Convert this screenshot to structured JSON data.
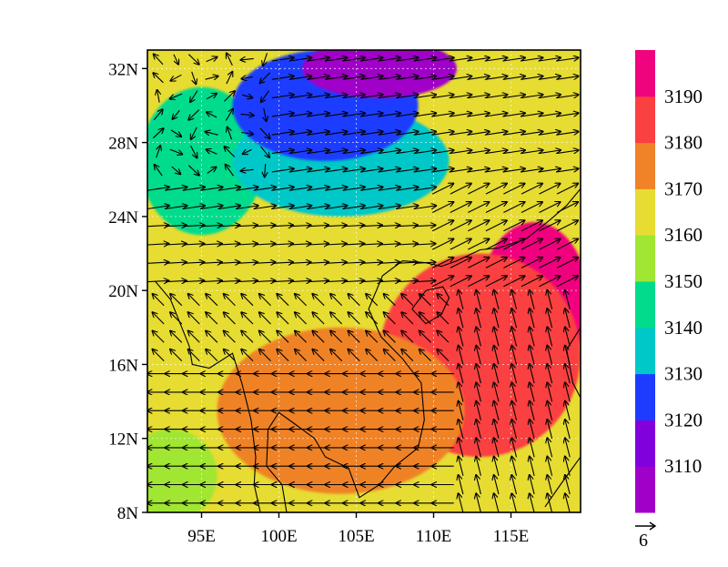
{
  "map": {
    "lon_range": [
      91.5,
      119.5
    ],
    "lat_range": [
      8,
      33
    ],
    "lon_ticks": [
      {
        "value": 95,
        "label": "95E"
      },
      {
        "value": 100,
        "label": "100E"
      },
      {
        "value": 105,
        "label": "105E"
      },
      {
        "value": 110,
        "label": "110E"
      },
      {
        "value": 115,
        "label": "115E"
      }
    ],
    "lat_ticks": [
      {
        "value": 8,
        "label": "8N"
      },
      {
        "value": 12,
        "label": "12N"
      },
      {
        "value": 16,
        "label": "16N"
      },
      {
        "value": 20,
        "label": "20N"
      },
      {
        "value": 24,
        "label": "24N"
      },
      {
        "value": 28,
        "label": "28N"
      },
      {
        "value": 32,
        "label": "32N"
      }
    ],
    "grid": true,
    "field": "filled contours (colour levels per colorbar) with overlaid wind vectors",
    "coastlines": true,
    "filled_regions": [
      {
        "level": "3190",
        "color": "#f0037e",
        "shape": "blob",
        "center": [
          116.5,
          19.5
        ],
        "extent": [
          3.5,
          4.2
        ]
      },
      {
        "level": "3180",
        "color": "#fa4040",
        "shape": "blob",
        "center": [
          113.0,
          16.5
        ],
        "extent": [
          6.5,
          5.5
        ]
      },
      {
        "level": "3170",
        "color": "#f08228",
        "shape": "blob",
        "center": [
          104.0,
          13.5
        ],
        "extent": [
          8.0,
          4.5
        ]
      },
      {
        "level": "3160",
        "color": "#e6dc32",
        "shape": "blob",
        "center": [
          92.5,
          18.0
        ],
        "extent": [
          3.0,
          6.0
        ]
      },
      {
        "level": "3150",
        "color": "#a0e632",
        "shape": "blob",
        "center": [
          93.0,
          10.0
        ],
        "extent": [
          3.0,
          2.5
        ]
      },
      {
        "level": "3140",
        "color": "#00dc8c",
        "shape": "blob",
        "center": [
          95.0,
          27.0
        ],
        "extent": [
          4.0,
          4.0
        ]
      },
      {
        "level": "3130",
        "color": "#00c8c8",
        "shape": "blob",
        "center": [
          104.0,
          27.0
        ],
        "extent": [
          7.0,
          3.0
        ]
      },
      {
        "level": "3120",
        "color": "#1e3cff",
        "shape": "blob",
        "center": [
          103.0,
          30.0
        ],
        "extent": [
          6.0,
          3.0
        ]
      },
      {
        "level": "3110",
        "color": "#a000c8",
        "shape": "blob",
        "center": [
          106.5,
          32.0
        ],
        "extent": [
          5.0,
          1.6
        ]
      }
    ]
  },
  "colorbar": {
    "colors": [
      "#a000c8",
      "#8200dc",
      "#1e3cff",
      "#00c8c8",
      "#00dc8c",
      "#a0e632",
      "#e6dc32",
      "#f08228",
      "#fa4040",
      "#f0037e"
    ],
    "labels": [
      "3110",
      "3120",
      "3130",
      "3140",
      "3150",
      "3160",
      "3170",
      "3180",
      "3190"
    ]
  },
  "reference_vector": {
    "label": "6"
  }
}
